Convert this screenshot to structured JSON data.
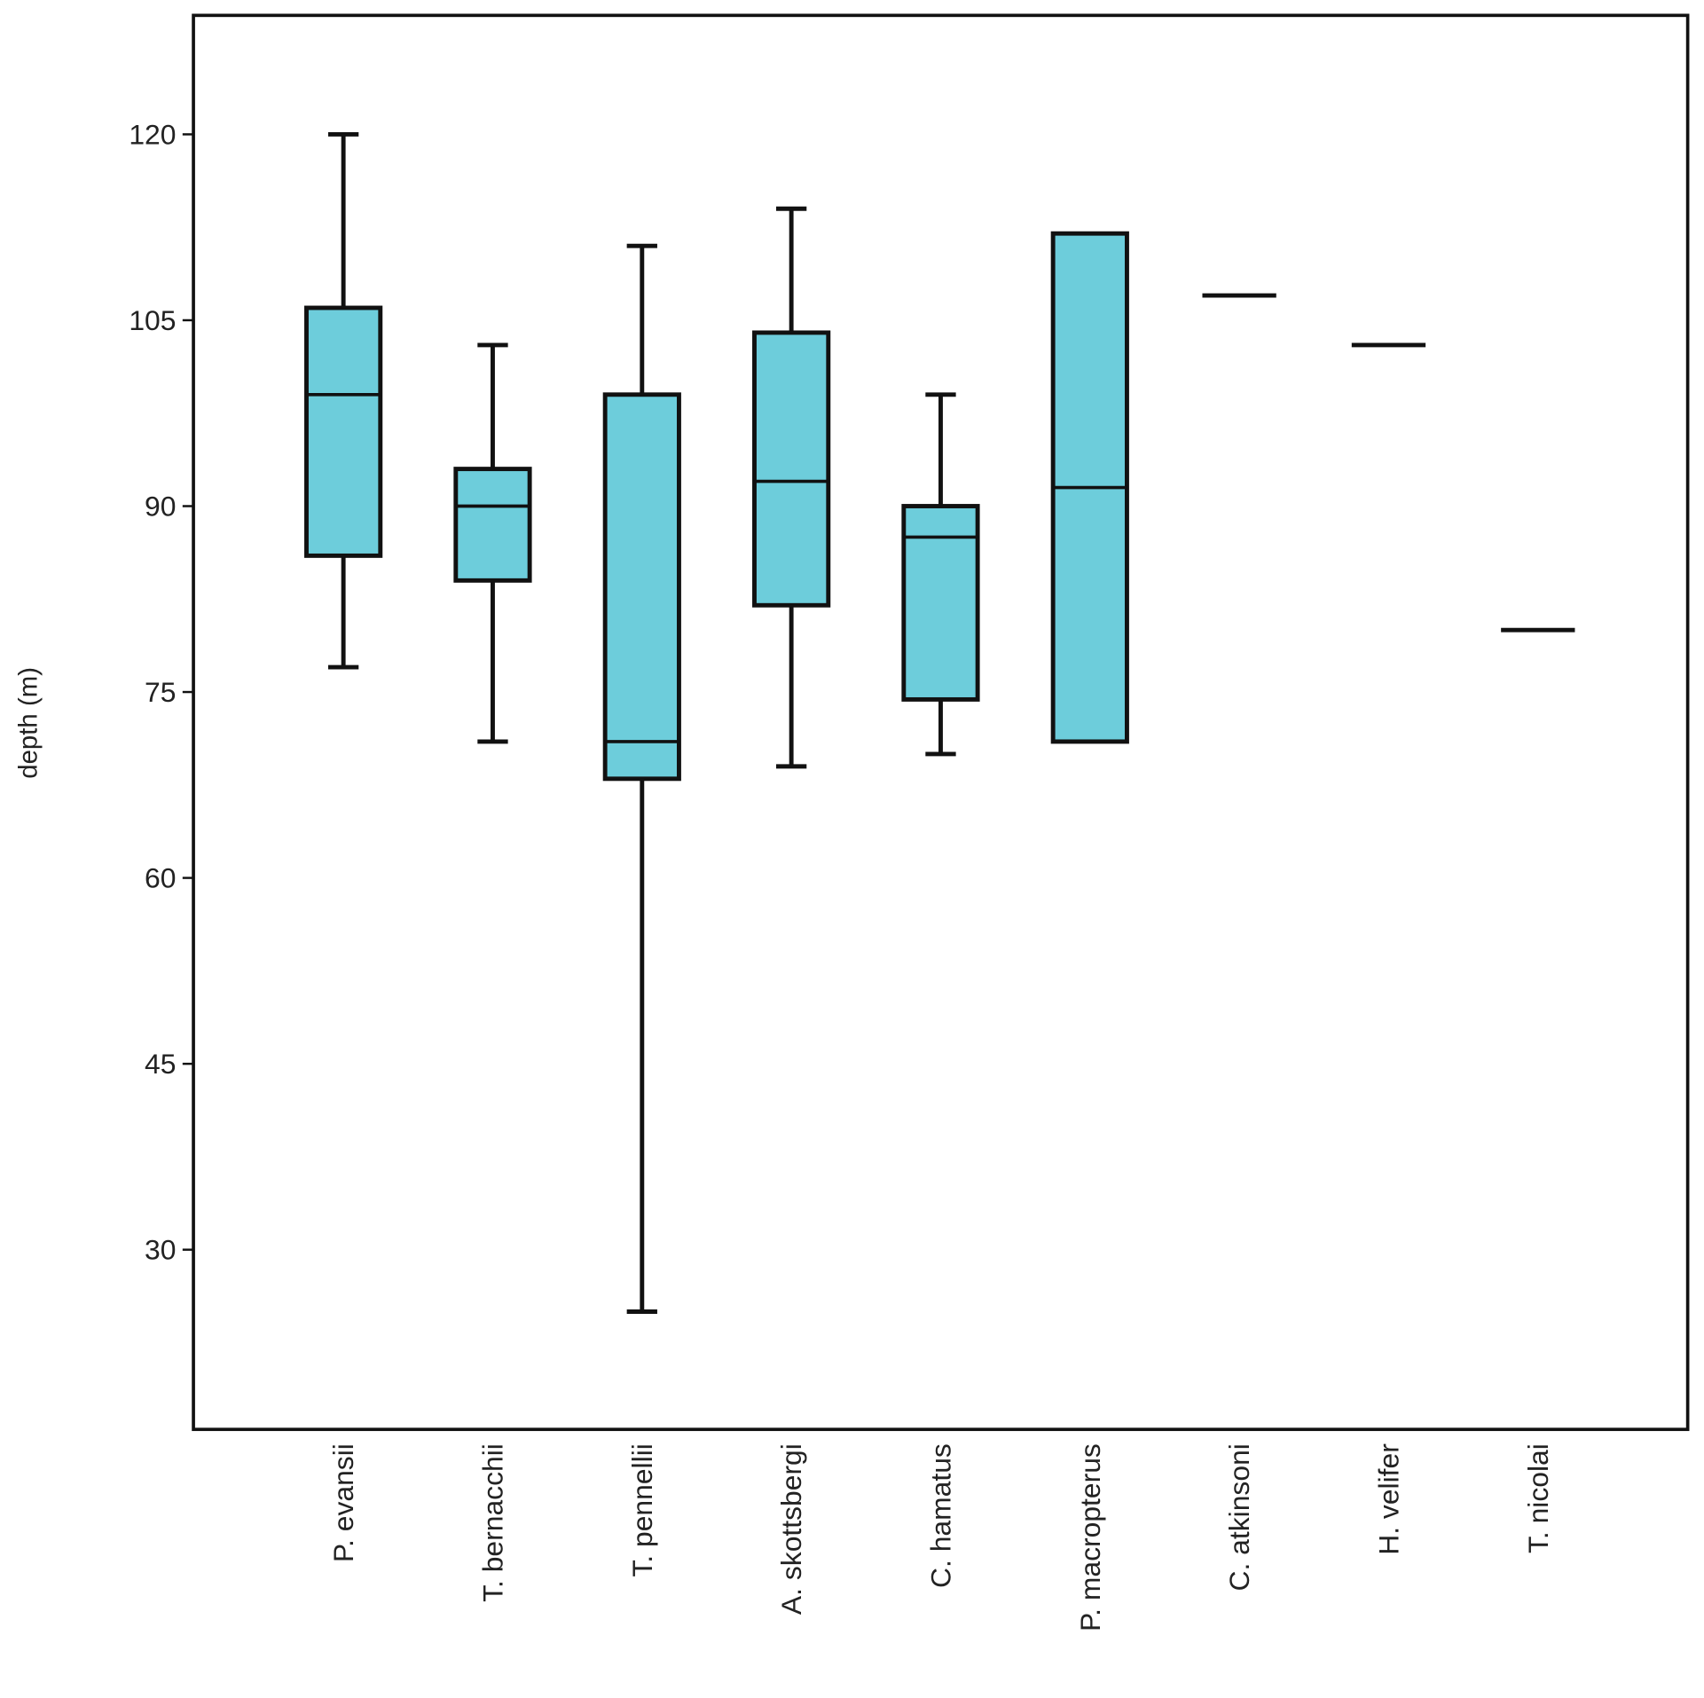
{
  "chart_data": {
    "type": "box",
    "title": "",
    "xlabel": "",
    "ylabel": "depth (m)",
    "ylim": [
      15.5,
      129.6
    ],
    "yticks": [
      30,
      45,
      60,
      75,
      90,
      105,
      120
    ],
    "grid": false,
    "box_color": "#6dcddb",
    "categories": [
      "P. evansii",
      "T. bernacchii",
      "T. pennellii",
      "A. skottsbergi",
      "C. hamatus",
      "P. macropterus",
      "C. atkinsoni",
      "H. velifer",
      "T. nicolai"
    ],
    "boxes": [
      {
        "min": 77,
        "q1": 86,
        "median": 99,
        "q3": 106,
        "max": 120
      },
      {
        "min": 71,
        "q1": 84,
        "median": 90,
        "q3": 93,
        "max": 103
      },
      {
        "min": 25,
        "q1": 68,
        "median": 71,
        "q3": 99,
        "max": 111
      },
      {
        "min": 69,
        "q1": 82,
        "median": 92,
        "q3": 104,
        "max": 114
      },
      {
        "min": 70,
        "q1": 74.4,
        "median": 87.5,
        "q3": 90,
        "max": 99
      },
      {
        "min": 71,
        "q1": 71,
        "median": 91.5,
        "q3": 112,
        "max": 112
      },
      {
        "min": 107,
        "q1": 107,
        "median": 107,
        "q3": 107,
        "max": 107
      },
      {
        "min": 103,
        "q1": 103,
        "median": 103,
        "q3": 103,
        "max": 103
      },
      {
        "min": 80,
        "q1": 80,
        "median": 80,
        "q3": 80,
        "max": 80
      }
    ]
  }
}
